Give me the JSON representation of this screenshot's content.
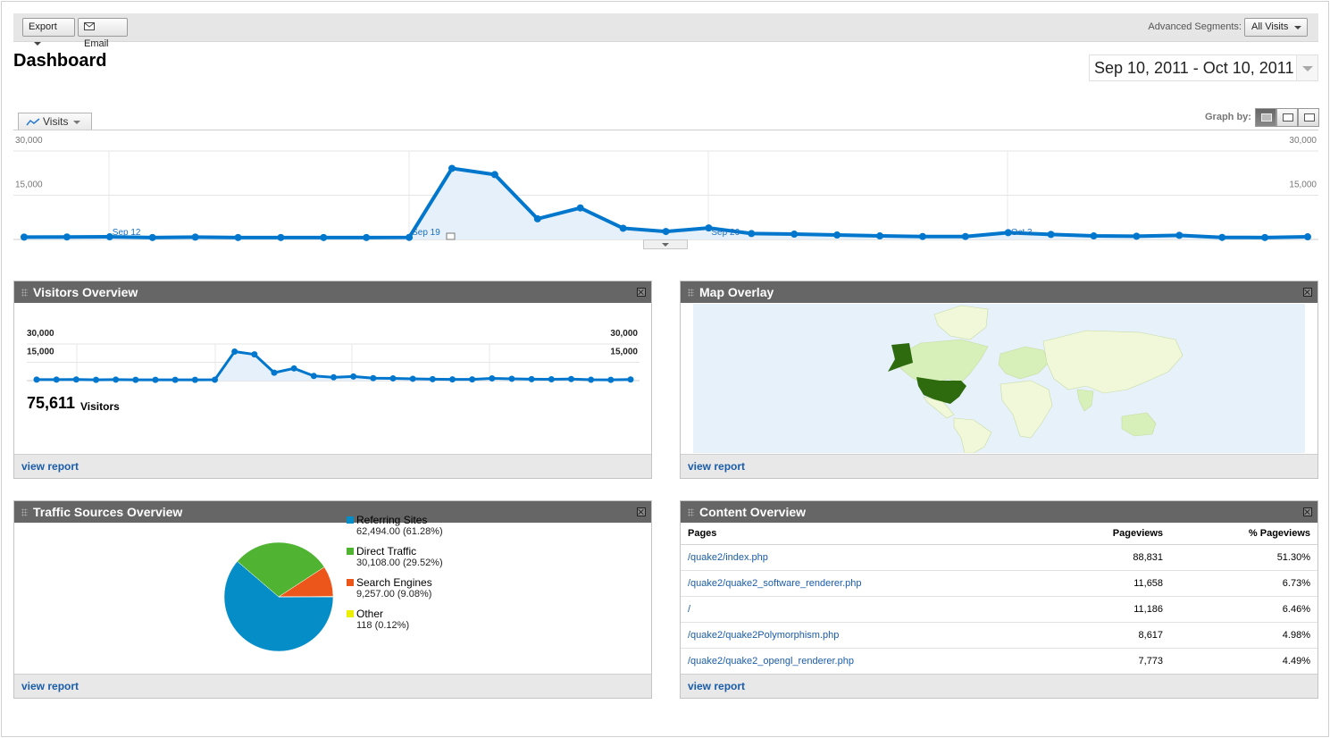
{
  "toolbar": {
    "export_label": "Export",
    "email_label": "Email",
    "segments_label": "Advanced Segments:",
    "segments_value": "All Visits"
  },
  "page_title": "Dashboard",
  "date_range": "Sep 10, 2011 - Oct 10, 2011",
  "graph": {
    "metric_label": "Visits",
    "graph_by_label": "Graph by:",
    "y_top": "30,000",
    "y_mid": "15,000",
    "x_labels": [
      "Sep 12",
      "Sep 19",
      "Sep 26",
      "Oct 3"
    ]
  },
  "chart_data": [
    {
      "type": "area",
      "title": "Visits",
      "x": [
        "Sep 10",
        "Sep 11",
        "Sep 12",
        "Sep 13",
        "Sep 14",
        "Sep 15",
        "Sep 16",
        "Sep 17",
        "Sep 18",
        "Sep 19",
        "Sep 20",
        "Sep 21",
        "Sep 22",
        "Sep 23",
        "Sep 24",
        "Sep 25",
        "Sep 26",
        "Sep 27",
        "Sep 28",
        "Sep 29",
        "Sep 30",
        "Oct 1",
        "Oct 2",
        "Oct 3",
        "Oct 4",
        "Oct 5",
        "Oct 6",
        "Oct 7",
        "Oct 8",
        "Oct 9",
        "Oct 10"
      ],
      "values": [
        800,
        850,
        900,
        650,
        800,
        650,
        650,
        650,
        650,
        700,
        24100,
        22000,
        7000,
        10700,
        3800,
        2700,
        3900,
        2000,
        1800,
        1500,
        1200,
        1000,
        1000,
        2300,
        1700,
        1200,
        1100,
        1400,
        700,
        650,
        900
      ],
      "ylim": [
        0,
        30000
      ],
      "ticks": [
        "15,000",
        "30,000"
      ]
    },
    {
      "type": "area",
      "title": "Visitors Overview",
      "values": [
        800,
        850,
        900,
        650,
        800,
        650,
        650,
        650,
        650,
        700,
        23800,
        21500,
        6500,
        10000,
        3800,
        2700,
        3400,
        2000,
        1800,
        1500,
        1200,
        1000,
        1000,
        1800,
        1500,
        1200,
        1100,
        1300,
        700,
        650,
        900
      ],
      "ylim": [
        0,
        30000
      ],
      "ticks": [
        "15,000",
        "30,000"
      ]
    },
    {
      "type": "pie",
      "title": "Traffic Sources Overview",
      "categories": [
        "Referring Sites",
        "Direct Traffic",
        "Search Engines",
        "Other"
      ],
      "values": [
        62494,
        30108,
        9257,
        118
      ],
      "percents": [
        61.28,
        29.52,
        9.08,
        0.12
      ],
      "colors": [
        "#058dc7",
        "#50b432",
        "#ed561b",
        "#edef00"
      ]
    }
  ],
  "visitors_widget": {
    "title": "Visitors Overview",
    "y_top": "30,000",
    "y_mid": "15,000",
    "total": "75,611",
    "total_label": "Visitors",
    "footer": "view report"
  },
  "map_widget": {
    "title": "Map Overlay",
    "footer": "view report",
    "colors": {
      "ocean": "#e6f1fa",
      "land": "#f1f8d9",
      "low": "#d7efb8",
      "high": "#2e6b0f"
    }
  },
  "traffic_widget": {
    "title": "Traffic Sources Overview",
    "footer": "view report",
    "legend": [
      {
        "name": "Referring Sites",
        "value": "62,494.00 (61.28%)",
        "color": "#058dc7"
      },
      {
        "name": "Direct Traffic",
        "value": "30,108.00 (29.52%)",
        "color": "#50b432"
      },
      {
        "name": "Search Engines",
        "value": "9,257.00 (9.08%)",
        "color": "#ed561b"
      },
      {
        "name": "Other",
        "value": "118 (0.12%)",
        "color": "#edef00"
      }
    ]
  },
  "content_widget": {
    "title": "Content Overview",
    "footer": "view report",
    "headers": [
      "Pages",
      "Pageviews",
      "% Pageviews"
    ],
    "rows": [
      [
        "/quake2/index.php",
        "88,831",
        "51.30%"
      ],
      [
        "/quake2/quake2_software_renderer.php",
        "11,658",
        "6.73%"
      ],
      [
        "/",
        "11,186",
        "6.46%"
      ],
      [
        "/quake2/quake2Polymorphism.php",
        "8,617",
        "4.98%"
      ],
      [
        "/quake2/quake2_opengl_renderer.php",
        "7,773",
        "4.49%"
      ]
    ]
  }
}
